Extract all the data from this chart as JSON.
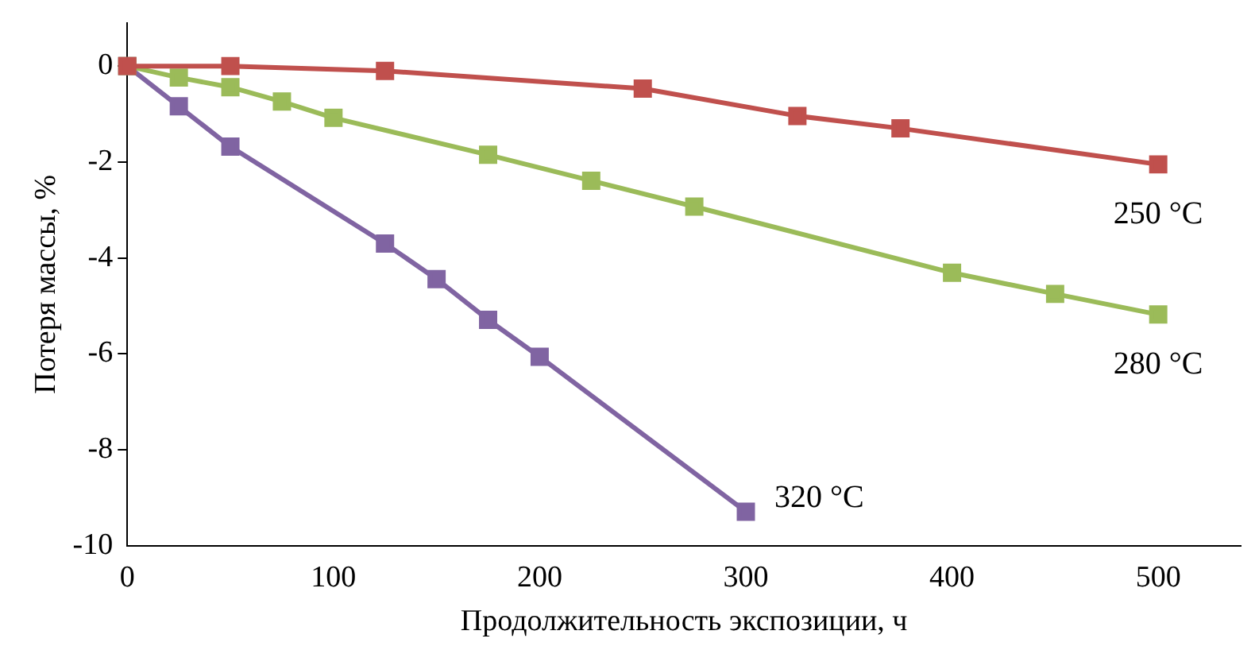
{
  "chart_data": {
    "type": "line",
    "xlabel": "Продолжительность экспозиции, ч",
    "ylabel": "Потеря массы, %",
    "xlim": [
      0,
      540
    ],
    "xticks": [
      0,
      100,
      200,
      300,
      400,
      500
    ],
    "ylim": [
      -10,
      0.9
    ],
    "yticks": [
      -10,
      -8,
      -6,
      -4,
      -2,
      0
    ],
    "grid": false,
    "legend": false,
    "marker": "square",
    "line_style": "solid",
    "series": [
      {
        "name": "250 °C",
        "color": "#c0504d",
        "x": [
          0,
          50,
          125,
          250,
          325,
          375,
          500
        ],
        "values": [
          0,
          0,
          -0.1,
          -0.47,
          -1.04,
          -1.3,
          -2.05
        ]
      },
      {
        "name": "280 °C",
        "color": "#9bbb59",
        "x": [
          0,
          25,
          50,
          75,
          100,
          175,
          225,
          275,
          400,
          450,
          500
        ],
        "values": [
          0,
          -0.24,
          -0.44,
          -0.74,
          -1.08,
          -1.85,
          -2.39,
          -2.93,
          -4.31,
          -4.75,
          -5.18
        ]
      },
      {
        "name": "320 °C",
        "color": "#8064a2",
        "x": [
          0,
          25,
          50,
          125,
          150,
          175,
          200,
          300
        ],
        "values": [
          0,
          -0.84,
          -1.68,
          -3.7,
          -4.44,
          -5.29,
          -6.06,
          -9.29
        ]
      }
    ]
  }
}
